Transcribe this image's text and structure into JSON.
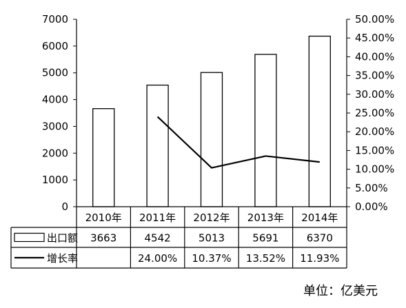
{
  "chart_data": {
    "type": "bar",
    "categories": [
      "2010年",
      "2011年",
      "2012年",
      "2013年",
      "2014年"
    ],
    "series": [
      {
        "name": "出口额",
        "kind": "bar",
        "axis": "left",
        "values": [
          3663,
          4542,
          5013,
          5691,
          6370
        ],
        "table_values": [
          "3663",
          "4542",
          "5013",
          "5691",
          "6370"
        ]
      },
      {
        "name": "增长率",
        "kind": "line",
        "axis": "right",
        "values": [
          null,
          24.0,
          10.37,
          13.52,
          11.93
        ],
        "table_values": [
          "",
          "24.00%",
          "10.37%",
          "13.52%",
          "11.93%"
        ]
      }
    ],
    "y_left": {
      "min": 0,
      "max": 7000,
      "ticks": [
        "0",
        "1000",
        "2000",
        "3000",
        "4000",
        "5000",
        "6000",
        "7000"
      ]
    },
    "y_right": {
      "min": 0,
      "max": 50,
      "ticks": [
        "0.00%",
        "5.00%",
        "10.00%",
        "15.00%",
        "20.00%",
        "25.00%",
        "30.00%",
        "35.00%",
        "40.00%",
        "45.00%",
        "50.00%"
      ]
    },
    "data_table": true,
    "grid": false,
    "legend": "data-table"
  },
  "unit_note": "单位：亿美元",
  "colors": {
    "bar_fill": "#ffffff",
    "bar_stroke": "#000000",
    "line": "#000000",
    "axis": "#000000"
  }
}
